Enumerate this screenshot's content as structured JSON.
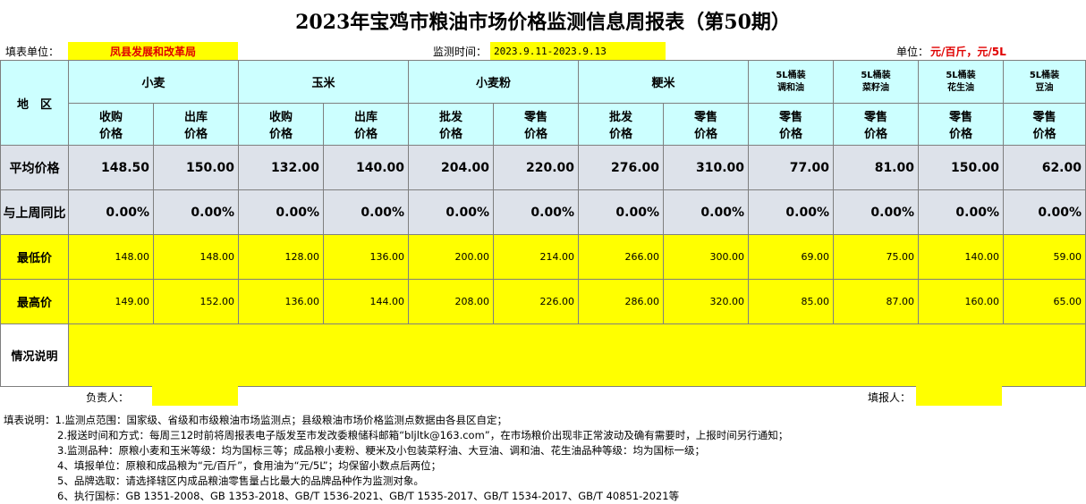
{
  "title": "2023年宝鸡市粮油市场价格监测信息周报表（第50期）",
  "info": {
    "unit_label": "填表单位：",
    "unit_value": "凤县发展和改革局",
    "period_label": "监测时间：",
    "period_value": "2023.9.11-2023.9.13",
    "measure_label": "单位：",
    "measure_value": "元/百斤，元/5L"
  },
  "table": {
    "region_header": "地　区",
    "groups": [
      {
        "label": "小麦"
      },
      {
        "label": "玉米"
      },
      {
        "label": "小麦粉"
      },
      {
        "label": "粳米"
      },
      {
        "label": "5L桶装\n调和油"
      },
      {
        "label": "5L桶装\n菜籽油"
      },
      {
        "label": "5L桶装\n花生油"
      },
      {
        "label": "5L桶装\n豆油"
      }
    ],
    "subheaders": [
      "收购\n价格",
      "出库\n价格",
      "收购\n价格",
      "出库\n价格",
      "批发\n价格",
      "零售\n价格",
      "批发\n价格",
      "零售\n价格",
      "零售\n价格",
      "零售\n价格",
      "零售\n价格",
      "零售\n价格"
    ],
    "rows": [
      {
        "label": "平均价格",
        "values": [
          "148.50",
          "150.00",
          "132.00",
          "140.00",
          "204.00",
          "220.00",
          "276.00",
          "310.00",
          "77.00",
          "81.00",
          "150.00",
          "62.00"
        ]
      },
      {
        "label": "与上周同比",
        "values": [
          "0.00%",
          "0.00%",
          "0.00%",
          "0.00%",
          "0.00%",
          "0.00%",
          "0.00%",
          "0.00%",
          "0.00%",
          "0.00%",
          "0.00%",
          "0.00%"
        ]
      },
      {
        "label": "最低价",
        "values": [
          "148.00",
          "148.00",
          "128.00",
          "136.00",
          "200.00",
          "214.00",
          "266.00",
          "300.00",
          "69.00",
          "75.00",
          "140.00",
          "59.00"
        ]
      },
      {
        "label": "最高价",
        "values": [
          "149.00",
          "152.00",
          "136.00",
          "144.00",
          "208.00",
          "226.00",
          "286.00",
          "320.00",
          "85.00",
          "87.00",
          "160.00",
          "65.00"
        ]
      }
    ],
    "notes_label": "情况说明"
  },
  "sign": {
    "manager_label": "负责人：",
    "filler_label": "填报人："
  },
  "notes": {
    "prefix": "填表说明：",
    "items": [
      "1.监测点范围：国家级、省级和市级粮油市场监测点；县级粮油市场价格监测点数据由各县区自定；",
      "2.报送时间和方式：每周三12时前将周报表电子版发至市发改委粮储科邮箱“bljltk@163.com”，在市场粮价出现非正常波动及确有需要时，上报时间另行通知；",
      "3.监测品种：原粮小麦和玉米等级：均为国标三等；成品粮小麦粉、粳米及小包装菜籽油、大豆油、调和油、花生油品种等级：均为国标一级；",
      "4、填报单位：原粮和成品粮为“元/百斤”，食用油为“元/5L”；均保留小数点后两位；",
      "5、品牌选取：请选择辖区内成品粮油零售量占比最大的品牌品种作为监测对象。",
      "6、执行国标：GB 1351-2008、GB 1353-2018、GB/T 1536-2021、GB/T 1535-2017、GB/T 1534-2017、GB/T 40851-2021等"
    ]
  },
  "colors": {
    "header_bg": "#ccffff",
    "highlight": "#ffff00",
    "summary_bg": "#dde2ea",
    "accent_red": "#e00000"
  }
}
